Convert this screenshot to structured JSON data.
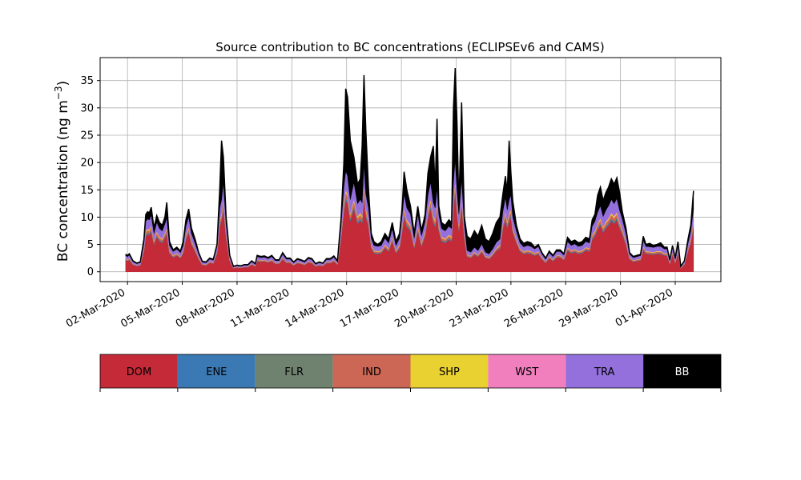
{
  "chart_data": {
    "type": "area",
    "stacked": true,
    "title": "Source contribution to BC concentrations (ECLIPSEv6 and CAMS)",
    "ylabel": "BC concentration (ng m",
    "ylabel_superscript": "−3",
    "ylabel_close": ")",
    "xlabel": "",
    "ylim": [
      -1.8,
      39.2
    ],
    "xlim_day": [
      -0.5,
      33.5
    ],
    "grid": true,
    "x_ticks": [
      {
        "day": 1,
        "label": "02-Mar-2020"
      },
      {
        "day": 4,
        "label": "05-Mar-2020"
      },
      {
        "day": 7,
        "label": "08-Mar-2020"
      },
      {
        "day": 10,
        "label": "11-Mar-2020"
      },
      {
        "day": 13,
        "label": "14-Mar-2020"
      },
      {
        "day": 16,
        "label": "17-Mar-2020"
      },
      {
        "day": 19,
        "label": "20-Mar-2020"
      },
      {
        "day": 22,
        "label": "23-Mar-2020"
      },
      {
        "day": 25,
        "label": "26-Mar-2020"
      },
      {
        "day": 28,
        "label": "29-Mar-2020"
      },
      {
        "day": 31,
        "label": "01-Apr-2020"
      }
    ],
    "y_ticks": [
      0,
      5,
      10,
      15,
      20,
      25,
      30,
      35
    ],
    "legend_position": "below-plot",
    "series": [
      {
        "name": "DOM",
        "color": "#c42a37",
        "text_color": "#000000"
      },
      {
        "name": "ENE",
        "color": "#3a79b3",
        "text_color": "#000000"
      },
      {
        "name": "FLR",
        "color": "#6f8270",
        "text_color": "#000000"
      },
      {
        "name": "IND",
        "color": "#cc6655",
        "text_color": "#000000"
      },
      {
        "name": "SHP",
        "color": "#e8d130",
        "text_color": "#000000"
      },
      {
        "name": "WST",
        "color": "#f17fbe",
        "text_color": "#000000"
      },
      {
        "name": "TRA",
        "color": "#9370db",
        "text_color": "#000000"
      },
      {
        "name": "BB",
        "color": "#000000",
        "text_color": "#ffffff"
      }
    ],
    "total_points": [
      [
        0.9,
        3.2
      ],
      [
        1.0,
        3.0
      ],
      [
        1.1,
        3.3
      ],
      [
        1.3,
        2.0
      ],
      [
        1.5,
        1.6
      ],
      [
        1.7,
        1.8
      ],
      [
        1.9,
        6.0
      ],
      [
        2.0,
        10.5
      ],
      [
        2.1,
        11.0
      ],
      [
        2.2,
        10.8
      ],
      [
        2.3,
        11.8
      ],
      [
        2.45,
        8.0
      ],
      [
        2.6,
        10.3
      ],
      [
        2.75,
        9.0
      ],
      [
        2.9,
        8.5
      ],
      [
        3.05,
        10.0
      ],
      [
        3.15,
        12.7
      ],
      [
        3.3,
        5.5
      ],
      [
        3.5,
        4.0
      ],
      [
        3.7,
        4.5
      ],
      [
        3.9,
        3.8
      ],
      [
        4.05,
        5.5
      ],
      [
        4.2,
        9.5
      ],
      [
        4.35,
        11.5
      ],
      [
        4.5,
        8.0
      ],
      [
        4.7,
        6.0
      ],
      [
        4.9,
        3.5
      ],
      [
        5.1,
        1.9
      ],
      [
        5.3,
        1.8
      ],
      [
        5.5,
        2.5
      ],
      [
        5.7,
        2.3
      ],
      [
        5.9,
        5.0
      ],
      [
        6.05,
        15.0
      ],
      [
        6.15,
        24.0
      ],
      [
        6.25,
        21.0
      ],
      [
        6.4,
        10.0
      ],
      [
        6.6,
        3.0
      ],
      [
        6.8,
        1.0
      ],
      [
        7.0,
        1.2
      ],
      [
        7.2,
        1.1
      ],
      [
        7.4,
        1.3
      ],
      [
        7.6,
        1.3
      ],
      [
        7.8,
        2.0
      ],
      [
        8.0,
        1.5
      ],
      [
        8.1,
        3.0
      ],
      [
        8.3,
        2.8
      ],
      [
        8.5,
        2.9
      ],
      [
        8.7,
        2.6
      ],
      [
        8.9,
        3.0
      ],
      [
        9.1,
        2.2
      ],
      [
        9.3,
        2.2
      ],
      [
        9.5,
        3.5
      ],
      [
        9.7,
        2.5
      ],
      [
        9.9,
        2.5
      ],
      [
        10.1,
        1.8
      ],
      [
        10.3,
        2.4
      ],
      [
        10.5,
        2.2
      ],
      [
        10.7,
        1.9
      ],
      [
        10.9,
        2.6
      ],
      [
        11.1,
        2.4
      ],
      [
        11.3,
        1.5
      ],
      [
        11.5,
        1.8
      ],
      [
        11.7,
        1.6
      ],
      [
        11.9,
        2.4
      ],
      [
        12.1,
        2.4
      ],
      [
        12.3,
        2.9
      ],
      [
        12.5,
        2.0
      ],
      [
        12.7,
        10.0
      ],
      [
        12.85,
        20.0
      ],
      [
        12.95,
        33.5
      ],
      [
        13.05,
        32.0
      ],
      [
        13.2,
        24.0
      ],
      [
        13.4,
        21.0
      ],
      [
        13.6,
        16.0
      ],
      [
        13.75,
        17.0
      ],
      [
        13.85,
        23.0
      ],
      [
        13.95,
        36.0
      ],
      [
        14.05,
        26.0
      ],
      [
        14.2,
        15.0
      ],
      [
        14.35,
        7.0
      ],
      [
        14.5,
        5.5
      ],
      [
        14.7,
        5.0
      ],
      [
        14.9,
        5.5
      ],
      [
        15.1,
        7.0
      ],
      [
        15.3,
        6.0
      ],
      [
        15.5,
        9.0
      ],
      [
        15.7,
        5.5
      ],
      [
        15.9,
        7.0
      ],
      [
        16.05,
        12.0
      ],
      [
        16.15,
        18.3
      ],
      [
        16.3,
        15.0
      ],
      [
        16.5,
        12.0
      ],
      [
        16.7,
        7.0
      ],
      [
        16.9,
        12.0
      ],
      [
        17.1,
        7.5
      ],
      [
        17.3,
        10.5
      ],
      [
        17.45,
        18.0
      ],
      [
        17.6,
        21.0
      ],
      [
        17.75,
        23.0
      ],
      [
        17.85,
        15.0
      ],
      [
        17.95,
        28.0
      ],
      [
        18.05,
        12.0
      ],
      [
        18.2,
        9.0
      ],
      [
        18.4,
        8.5
      ],
      [
        18.6,
        9.5
      ],
      [
        18.75,
        9.0
      ],
      [
        18.85,
        30.0
      ],
      [
        18.95,
        37.3
      ],
      [
        19.05,
        27.0
      ],
      [
        19.15,
        12.0
      ],
      [
        19.3,
        31.0
      ],
      [
        19.45,
        10.0
      ],
      [
        19.6,
        6.5
      ],
      [
        19.8,
        6.0
      ],
      [
        20.0,
        7.5
      ],
      [
        20.2,
        6.5
      ],
      [
        20.4,
        8.5
      ],
      [
        20.6,
        6.0
      ],
      [
        20.8,
        5.5
      ],
      [
        21.0,
        7.0
      ],
      [
        21.2,
        9.0
      ],
      [
        21.4,
        10.0
      ],
      [
        21.55,
        14.0
      ],
      [
        21.7,
        17.5
      ],
      [
        21.8,
        14.5
      ],
      [
        21.9,
        24.0
      ],
      [
        22.0,
        18.0
      ],
      [
        22.1,
        13.0
      ],
      [
        22.3,
        8.5
      ],
      [
        22.5,
        6.0
      ],
      [
        22.7,
        5.2
      ],
      [
        22.9,
        5.5
      ],
      [
        23.1,
        5.3
      ],
      [
        23.3,
        4.5
      ],
      [
        23.5,
        5.0
      ],
      [
        23.7,
        3.5
      ],
      [
        23.9,
        2.5
      ],
      [
        24.1,
        3.8
      ],
      [
        24.3,
        3.0
      ],
      [
        24.5,
        4.0
      ],
      [
        24.7,
        4.0
      ],
      [
        24.9,
        3.3
      ],
      [
        25.1,
        6.3
      ],
      [
        25.3,
        5.5
      ],
      [
        25.5,
        5.8
      ],
      [
        25.7,
        5.3
      ],
      [
        25.9,
        5.5
      ],
      [
        26.1,
        6.3
      ],
      [
        26.3,
        6.0
      ],
      [
        26.45,
        9.5
      ],
      [
        26.6,
        10.5
      ],
      [
        26.75,
        14.0
      ],
      [
        26.9,
        15.5
      ],
      [
        27.05,
        13.0
      ],
      [
        27.2,
        14.5
      ],
      [
        27.35,
        15.5
      ],
      [
        27.5,
        17.0
      ],
      [
        27.65,
        16.0
      ],
      [
        27.8,
        17.2
      ],
      [
        27.95,
        14.5
      ],
      [
        28.1,
        11.0
      ],
      [
        28.3,
        8.0
      ],
      [
        28.5,
        3.5
      ],
      [
        28.7,
        2.8
      ],
      [
        28.9,
        3.0
      ],
      [
        29.1,
        3.2
      ],
      [
        29.25,
        6.5
      ],
      [
        29.4,
        5.0
      ],
      [
        29.6,
        5.2
      ],
      [
        29.8,
        4.8
      ],
      [
        30.0,
        5.0
      ],
      [
        30.2,
        5.3
      ],
      [
        30.4,
        4.5
      ],
      [
        30.55,
        4.5
      ],
      [
        30.7,
        2.2
      ],
      [
        30.85,
        4.8
      ],
      [
        31.0,
        2.5
      ],
      [
        31.15,
        5.5
      ],
      [
        31.3,
        1.0
      ],
      [
        31.5,
        2.0
      ],
      [
        31.7,
        6.0
      ],
      [
        31.85,
        8.5
      ],
      [
        32.0,
        14.8
      ]
    ],
    "bb_share_note": ""
  }
}
